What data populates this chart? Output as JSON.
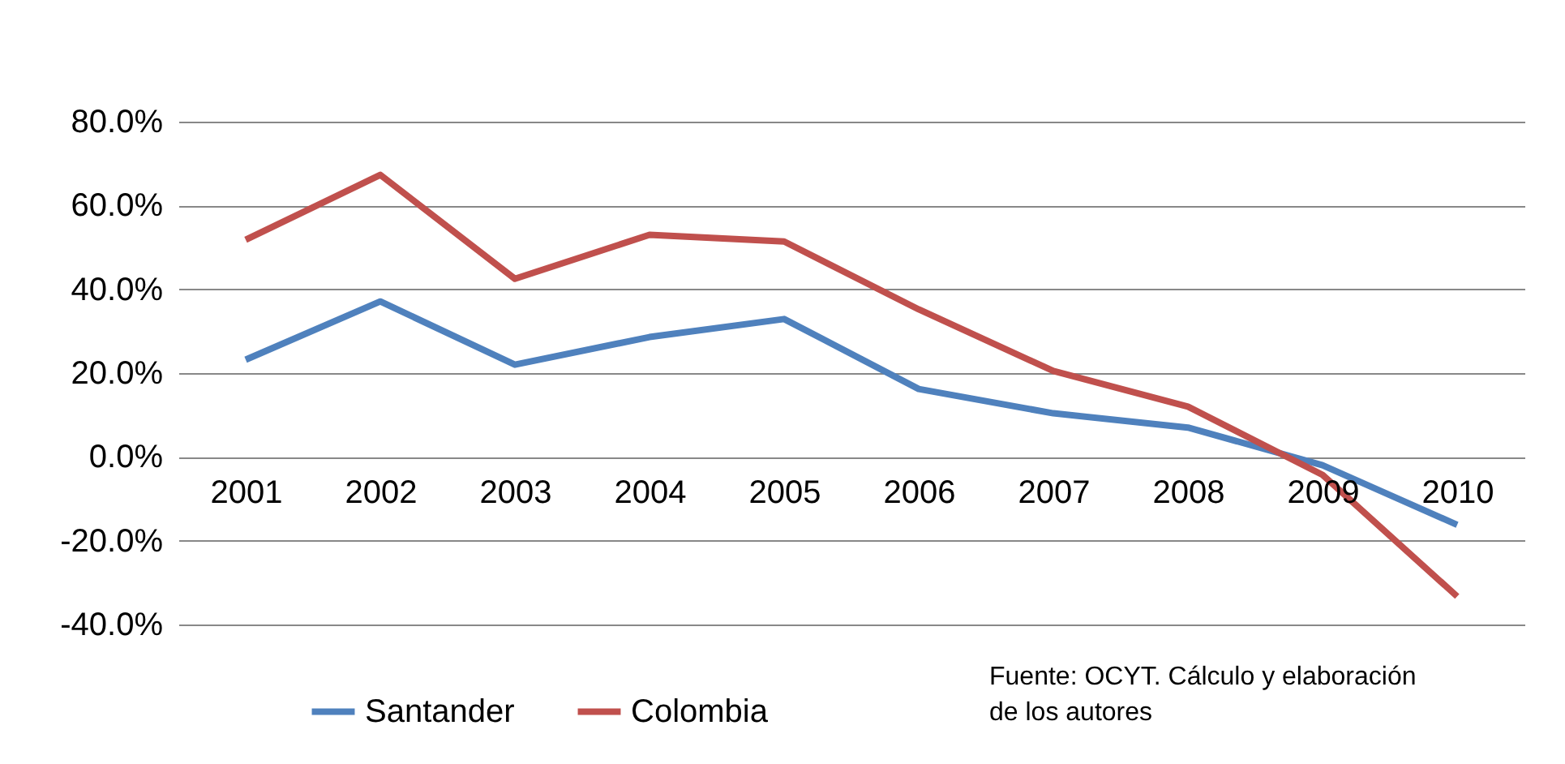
{
  "chart_data": {
    "type": "line",
    "categories": [
      "2001",
      "2002",
      "2003",
      "2004",
      "2005",
      "2006",
      "2007",
      "2008",
      "2009",
      "2010"
    ],
    "series": [
      {
        "name": "Santander",
        "color": "#4f81bd",
        "values": [
          23.2,
          37.1,
          22.0,
          28.6,
          32.9,
          16.2,
          10.4,
          7.0,
          -2.0,
          -16.2
        ]
      },
      {
        "name": "Colombia",
        "color": "#c0504d",
        "values": [
          51.8,
          67.3,
          42.5,
          53.0,
          51.4,
          35.2,
          20.5,
          12.0,
          -4.3,
          -33.3
        ]
      }
    ],
    "ylim": [
      -40,
      80
    ],
    "yticks": [
      {
        "value": -40,
        "label": "-40.0%"
      },
      {
        "value": -20,
        "label": "-20.0%"
      },
      {
        "value": 0,
        "label": "0.0%"
      },
      {
        "value": 20,
        "label": "20.0%"
      },
      {
        "value": 40,
        "label": "40.0%"
      },
      {
        "value": 60,
        "label": "60.0%"
      },
      {
        "value": 80,
        "label": "80.0%"
      }
    ],
    "grid": "y",
    "legend": "bottom",
    "marker": "none",
    "line_style": "solid",
    "annotations": [
      "Fuente: OCYT. Cálculo y elaboración\nde los autores"
    ]
  }
}
